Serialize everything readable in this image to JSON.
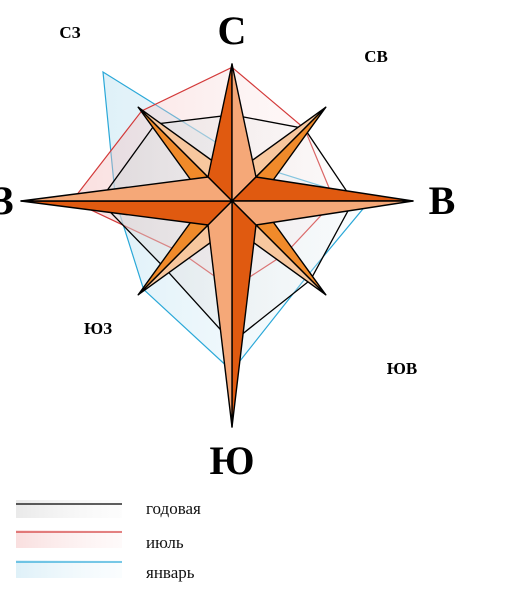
{
  "chart_data": {
    "type": "radar",
    "directions": [
      "С",
      "СВ",
      "В",
      "ЮВ",
      "Ю",
      "ЮЗ",
      "З",
      "СЗ"
    ],
    "series": [
      {
        "name": "годовая",
        "values": [
          6.9,
          8.2,
          9.7,
          8.9,
          11.3,
          7.6,
          10.6,
          8.7
        ]
      },
      {
        "name": "июль",
        "values": [
          10.7,
          8.2,
          8.2,
          6.0,
          7.0,
          5.8,
          12.8,
          10.2
        ]
      },
      {
        "name": "январь",
        "values": [
          3.9,
          3.7,
          11.0,
          8.5,
          13.6,
          10.0,
          9.3,
          14.6
        ]
      }
    ],
    "colors": {
      "годовая": "#000000",
      "июль": "#d33a3a",
      "январь": "#2aa8d8",
      "star_dark": "#e05a10",
      "star_mid": "#f08a2a",
      "star_light": "#f5a878",
      "star_pale": "#f7c79e"
    },
    "legend_position": "bottom-left"
  }
}
